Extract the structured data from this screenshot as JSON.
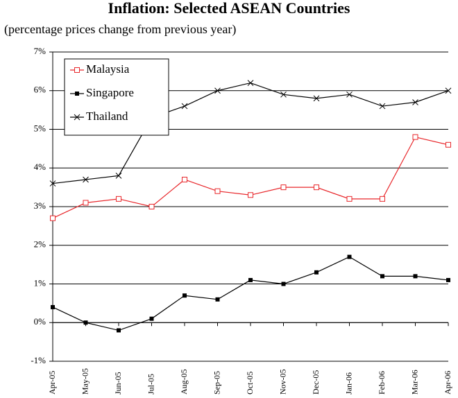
{
  "chart_data": {
    "type": "line",
    "title": "Inflation: Selected ASEAN Countries",
    "subtitle": "(percentage prices change from previous year)",
    "categories": [
      "Apr-05",
      "May-05",
      "Jun-05",
      "Jul-05",
      "Aug-05",
      "Sep-05",
      "Oct-05",
      "Nov-05",
      "Dec-05",
      "Jan-06",
      "Feb-06",
      "Mar-06",
      "Apr-06"
    ],
    "series": [
      {
        "name": "Malaysia",
        "color": "#e8262a",
        "marker": "square-open",
        "values": [
          2.7,
          3.1,
          3.2,
          3.0,
          3.7,
          3.4,
          3.3,
          3.5,
          3.5,
          3.2,
          3.2,
          4.8,
          4.6
        ]
      },
      {
        "name": "Singapore",
        "color": "#000000",
        "marker": "square-filled",
        "values": [
          0.4,
          0.0,
          -0.2,
          0.1,
          0.7,
          0.6,
          1.1,
          1.0,
          1.3,
          1.7,
          1.2,
          1.2,
          1.1
        ]
      },
      {
        "name": "Thailand",
        "color": "#000000",
        "marker": "cross",
        "values": [
          3.6,
          3.7,
          3.8,
          5.3,
          5.6,
          6.0,
          6.2,
          5.9,
          5.8,
          5.9,
          5.6,
          5.7,
          6.0
        ]
      }
    ],
    "ylim": [
      -1,
      7
    ],
    "yticks": [
      {
        "value": -1,
        "label": "-1%"
      },
      {
        "value": 0,
        "label": "0%"
      },
      {
        "value": 1,
        "label": "1%"
      },
      {
        "value": 2,
        "label": "2%"
      },
      {
        "value": 3,
        "label": "3%"
      },
      {
        "value": 4,
        "label": "4%"
      },
      {
        "value": 5,
        "label": "5%"
      },
      {
        "value": 6,
        "label": "6%"
      },
      {
        "value": 7,
        "label": "7%"
      }
    ],
    "grid": true,
    "legend": "upper-left"
  }
}
